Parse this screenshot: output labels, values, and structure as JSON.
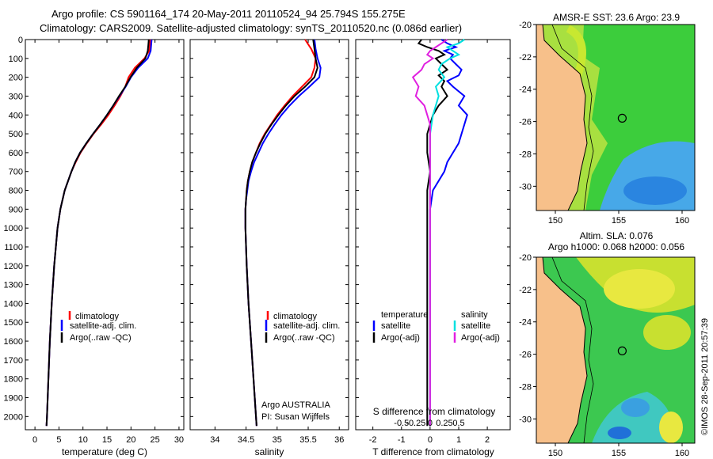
{
  "header": {
    "title_line1": "Argo profile: CS 5901164_174 20-May-2011 20110524_94 25.794S 155.275E",
    "title_line2": "Climatology: CARS2009. Satellite-adjusted climatology: synTS_20110520.nc (0.086d earlier)"
  },
  "depth_axis": {
    "ticks": [
      0,
      100,
      200,
      300,
      400,
      500,
      600,
      700,
      800,
      900,
      1000,
      1100,
      1200,
      1300,
      1400,
      1500,
      1600,
      1700,
      1800,
      1900,
      2000
    ],
    "range": [
      0,
      2070
    ]
  },
  "colors": {
    "climatology": "#ff0000",
    "satellite": "#0000ff",
    "argo": "#000000",
    "salinity_satellite": "#00e0e0",
    "salinity_argo": "#e020e0"
  },
  "chart_data": [
    {
      "type": "line",
      "name": "temperature",
      "xlabel": "temperature (deg C)",
      "xlim": [
        -2,
        31
      ],
      "xticks": [
        0,
        5,
        10,
        15,
        20,
        25,
        30
      ],
      "ylim": [
        2070,
        0
      ],
      "legend": [
        "climatology",
        "satellite-adj. clim.",
        "Argo(..raw -QC)"
      ],
      "series": [
        {
          "name": "climatology",
          "depth": [
            0,
            30,
            60,
            100,
            150,
            200,
            250,
            300,
            350,
            400,
            450,
            500,
            550,
            600,
            650,
            700,
            800,
            900,
            1000,
            1200,
            1400,
            1600,
            1800,
            2000,
            2050
          ],
          "values": [
            24.0,
            23.9,
            23.8,
            22.8,
            20.8,
            19.5,
            18.8,
            17.8,
            16.6,
            15.3,
            13.8,
            12.2,
            10.8,
            9.5,
            8.5,
            7.6,
            6.2,
            5.3,
            4.7,
            4.0,
            3.5,
            3.1,
            2.8,
            2.5,
            2.4
          ]
        },
        {
          "name": "satellite",
          "depth": [
            0,
            30,
            60,
            100,
            150,
            200,
            250,
            300,
            350,
            400,
            450,
            500,
            550,
            600,
            650,
            700,
            800,
            900,
            1000,
            1200,
            1400,
            1600,
            1800,
            2000,
            2050
          ],
          "values": [
            24.3,
            24.2,
            24.1,
            23.5,
            21.5,
            20.0,
            18.9,
            17.6,
            16.3,
            15.0,
            13.6,
            12.1,
            10.7,
            9.4,
            8.4,
            7.6,
            6.2,
            5.3,
            4.7,
            4.0,
            3.5,
            3.1,
            2.8,
            2.5,
            2.4
          ]
        },
        {
          "name": "argo",
          "depth": [
            0,
            30,
            60,
            100,
            150,
            200,
            250,
            300,
            350,
            400,
            450,
            500,
            550,
            600,
            650,
            700,
            800,
            900,
            1000,
            1200,
            1400,
            1600,
            1800,
            2000,
            2050
          ],
          "values": [
            23.7,
            23.6,
            23.5,
            23.0,
            21.2,
            19.9,
            18.8,
            17.5,
            16.3,
            15.0,
            13.6,
            12.1,
            10.7,
            9.4,
            8.4,
            7.6,
            6.2,
            5.3,
            4.7,
            4.0,
            3.5,
            3.1,
            2.8,
            2.5,
            2.4
          ]
        }
      ]
    },
    {
      "type": "line",
      "name": "salinity",
      "xlabel": "salinity",
      "xlim": [
        33.6,
        36.15
      ],
      "xticks": [
        34,
        34.5,
        35,
        35.5,
        36
      ],
      "ylim": [
        2070,
        0
      ],
      "legend": [
        "climatology",
        "satellite-adj. clim.",
        "Argo(..raw -QC)"
      ],
      "annotation": [
        "Argo AUSTRALIA",
        "PI: Susan Wijffels"
      ],
      "series": [
        {
          "name": "climatology",
          "depth": [
            0,
            50,
            100,
            150,
            200,
            250,
            300,
            350,
            400,
            450,
            500,
            550,
            600,
            650,
            700,
            750,
            800,
            850,
            900,
            1000,
            1100,
            1200,
            1400,
            1600,
            1800,
            2000,
            2050
          ],
          "values": [
            35.45,
            35.55,
            35.62,
            35.6,
            35.55,
            35.4,
            35.25,
            35.12,
            35.0,
            34.9,
            34.8,
            34.72,
            34.66,
            34.6,
            34.56,
            34.53,
            34.51,
            34.5,
            34.49,
            34.49,
            34.5,
            34.51,
            34.54,
            34.58,
            34.62,
            34.66,
            34.67
          ]
        },
        {
          "name": "satellite",
          "depth": [
            0,
            50,
            100,
            150,
            200,
            250,
            300,
            350,
            400,
            450,
            500,
            550,
            600,
            650,
            700,
            750,
            800,
            850,
            900,
            1000,
            1100,
            1200,
            1400,
            1600,
            1800,
            2000,
            2050
          ],
          "values": [
            35.6,
            35.62,
            35.65,
            35.7,
            35.68,
            35.52,
            35.35,
            35.2,
            35.07,
            34.96,
            34.86,
            34.77,
            34.7,
            34.63,
            34.58,
            34.54,
            34.52,
            34.5,
            34.49,
            34.49,
            34.5,
            34.51,
            34.54,
            34.58,
            34.62,
            34.66,
            34.67
          ]
        },
        {
          "name": "argo",
          "depth": [
            0,
            50,
            100,
            150,
            200,
            250,
            300,
            350,
            400,
            450,
            500,
            550,
            600,
            650,
            700,
            750,
            800,
            850,
            900,
            1000,
            1100,
            1200,
            1400,
            1600,
            1800,
            2000,
            2050
          ],
          "values": [
            35.58,
            35.6,
            35.62,
            35.65,
            35.6,
            35.45,
            35.28,
            35.14,
            35.02,
            34.91,
            34.81,
            34.73,
            34.66,
            34.6,
            34.56,
            34.53,
            34.51,
            34.5,
            34.49,
            34.49,
            34.5,
            34.51,
            34.54,
            34.58,
            34.62,
            34.66,
            34.67
          ]
        }
      ]
    },
    {
      "type": "line",
      "name": "difference",
      "xlabel": "T difference from climatology",
      "xlim": [
        -2.6,
        2.8
      ],
      "xticks": [
        -2,
        -1,
        0,
        1,
        2
      ],
      "top_axis_label": "S difference from climatology",
      "top_ticks": [
        "-0.5",
        "-0.25",
        "0",
        "0.25",
        "0.5"
      ],
      "ylim": [
        2070,
        0
      ],
      "legend_left_title": "temperature",
      "legend_left": [
        "satellite",
        "Argo(-adj)"
      ],
      "legend_right_title": "salinity",
      "legend_right": [
        "satellite",
        "Argo(-adj)"
      ],
      "series": [
        {
          "name": "T satellite",
          "depth": [
            0,
            20,
            40,
            60,
            80,
            100,
            130,
            160,
            190,
            220,
            250,
            300,
            350,
            400,
            450,
            500,
            550,
            600,
            650,
            700,
            800,
            900,
            1000,
            1200,
            1500,
            2000,
            2050
          ],
          "values": [
            0.4,
            0.6,
            0.9,
            0.5,
            0.8,
            0.7,
            0.9,
            1.1,
            1.0,
            0.6,
            0.8,
            1.2,
            1.0,
            1.3,
            1.2,
            1.1,
            1.0,
            0.8,
            0.6,
            0.5,
            0.1,
            0.0,
            0.0,
            0.0,
            0.0,
            0.0,
            0.0
          ]
        },
        {
          "name": "T argo",
          "depth": [
            0,
            20,
            40,
            60,
            80,
            100,
            130,
            160,
            190,
            220,
            250,
            300,
            350,
            400,
            450,
            500,
            600,
            700,
            800,
            900,
            1000,
            1200,
            1500,
            1800,
            2000,
            2050
          ],
          "values": [
            -0.3,
            -0.4,
            -0.1,
            0.3,
            0.5,
            0.2,
            0.4,
            0.6,
            0.3,
            0.5,
            0.4,
            0.6,
            0.3,
            0.1,
            0.0,
            -0.1,
            -0.1,
            0.0,
            -0.1,
            -0.1,
            -0.1,
            -0.1,
            -0.1,
            -0.1,
            -0.1,
            -0.1
          ]
        },
        {
          "name": "S satellite",
          "depth": [
            0,
            20,
            40,
            60,
            80,
            100,
            130,
            160,
            200,
            250,
            300,
            400,
            500,
            600,
            700,
            800,
            1000,
            1500,
            2000,
            2050
          ],
          "values": [
            0.6,
            0.5,
            0.3,
            0.4,
            0.5,
            0.35,
            0.2,
            0.15,
            0.25,
            0.1,
            0.15,
            0.05,
            0.0,
            0.0,
            0.0,
            0.0,
            0.0,
            0.0,
            0.0,
            0.0
          ]
        },
        {
          "name": "S argo",
          "depth": [
            0,
            20,
            40,
            60,
            80,
            100,
            130,
            160,
            200,
            250,
            300,
            350,
            400,
            450,
            500,
            600,
            700,
            800,
            1000,
            1500,
            2000,
            2050
          ],
          "values": [
            0.3,
            0.2,
            0.1,
            0.0,
            -0.05,
            0.05,
            -0.1,
            -0.15,
            -0.3,
            -0.2,
            -0.25,
            -0.1,
            -0.05,
            0.0,
            0.0,
            0.0,
            0.0,
            0.0,
            0.0,
            0.0,
            0.0,
            0.0
          ]
        }
      ]
    },
    {
      "type": "heatmap",
      "name": "sst_map",
      "title": "AMSR-E SST: 23.6 Argo: 23.9",
      "xticks": [
        150,
        155,
        160
      ],
      "yticks": [
        -20,
        -22,
        -24,
        -26,
        -28,
        -30
      ],
      "xlim": [
        148.5,
        161
      ],
      "ylim": [
        -31.5,
        -20
      ]
    },
    {
      "type": "heatmap",
      "name": "sla_map",
      "title_line1": "Altim. SLA: 0.076",
      "title_line2": "Argo h1000: 0.068 h2000: 0.056",
      "xticks": [
        150,
        155,
        160
      ],
      "yticks": [
        -20,
        -22,
        -24,
        -26,
        -28,
        -30
      ],
      "xlim": [
        148.5,
        161
      ],
      "ylim": [
        -31.5,
        -20
      ]
    }
  ],
  "footer": {
    "timestamp": "©IMOS 28-Sep-2011 20:57:39"
  }
}
